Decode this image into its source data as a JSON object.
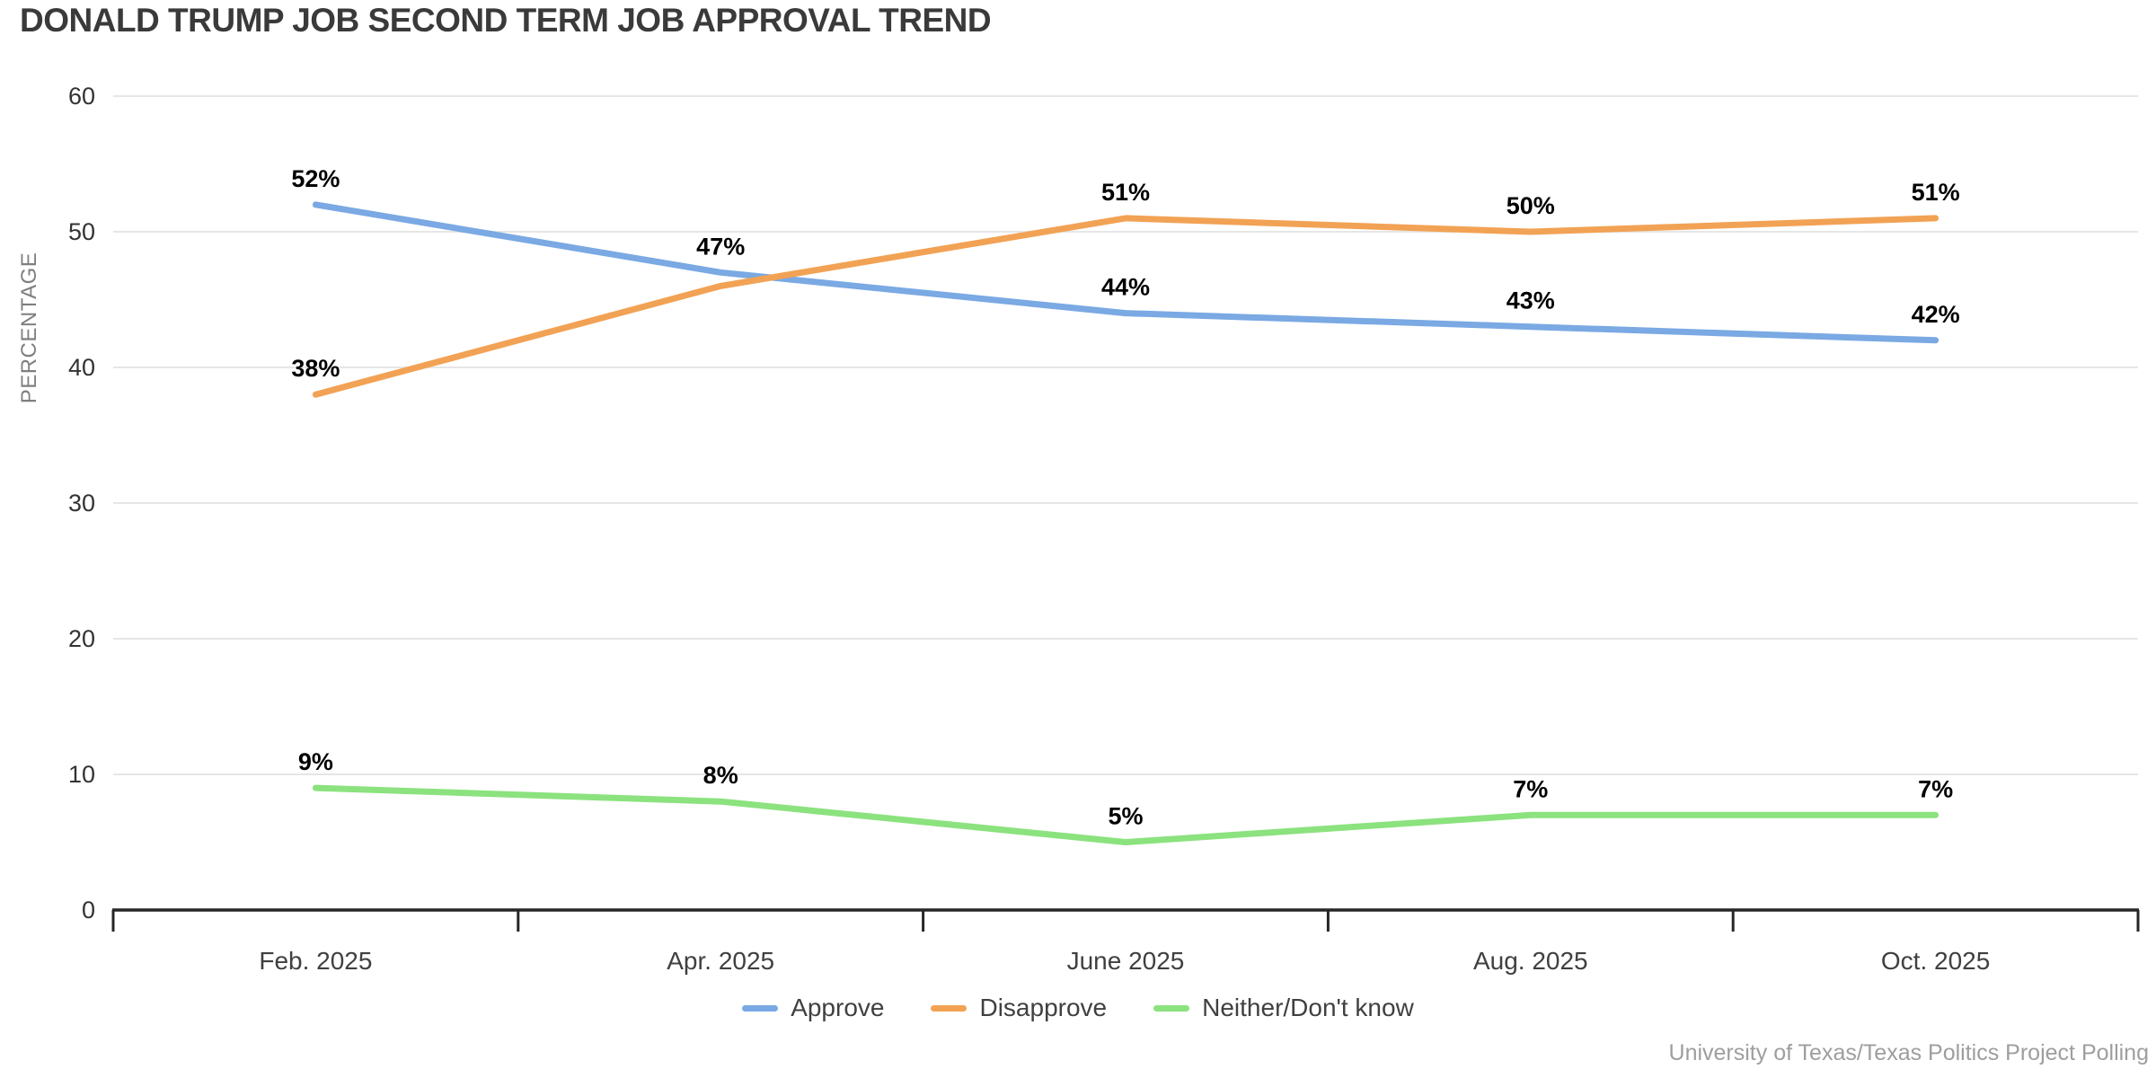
{
  "title": "DONALD TRUMP JOB SECOND TERM JOB APPROVAL TREND",
  "attribution": "University of Texas/Texas Politics Project Polling",
  "colors": {
    "approve": "#7AA9E3",
    "disapprove": "#F2A254",
    "neither": "#8BE27E",
    "gridline": "#E6E6E6",
    "axis": "#262626",
    "tick_label": "#333333",
    "category_label": "#404040",
    "axis_title": "#7F7F7F",
    "data_label": "#000000"
  },
  "chart_data": {
    "type": "line",
    "title": "DONALD TRUMP JOB SECOND TERM JOB APPROVAL TREND",
    "categories": [
      "Feb. 2025",
      "Apr. 2025",
      "June 2025",
      "Aug. 2025",
      "Oct. 2025"
    ],
    "series": [
      {
        "name": "Approve",
        "color": "#7AA9E3",
        "values": [
          52,
          47,
          44,
          43,
          42
        ],
        "labels": [
          "52%",
          "47%",
          "44%",
          "43%",
          "42%"
        ]
      },
      {
        "name": "Disapprove",
        "color": "#F2A254",
        "values": [
          38,
          46,
          51,
          50,
          51
        ],
        "labels": [
          "38%",
          null,
          "51%",
          "50%",
          "51%"
        ]
      },
      {
        "name": "Neither/Don't know",
        "color": "#8BE27E",
        "values": [
          9,
          8,
          5,
          7,
          7
        ],
        "labels": [
          "9%",
          "8%",
          "5%",
          "7%",
          "7%"
        ]
      }
    ],
    "xlabel": "",
    "ylabel": "PERCENTAGE",
    "ylim": [
      0,
      60
    ],
    "yticks": [
      0,
      10,
      20,
      30,
      40,
      50,
      60
    ],
    "grid": true,
    "legend_position": "bottom"
  }
}
